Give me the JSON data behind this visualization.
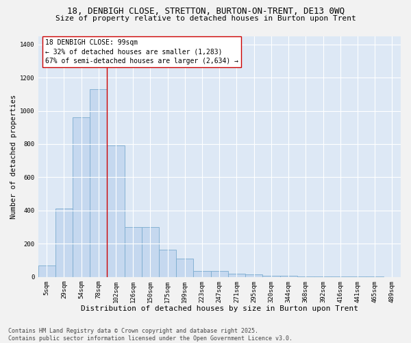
{
  "title": "18, DENBIGH CLOSE, STRETTON, BURTON-ON-TRENT, DE13 0WQ",
  "subtitle": "Size of property relative to detached houses in Burton upon Trent",
  "xlabel": "Distribution of detached houses by size in Burton upon Trent",
  "ylabel": "Number of detached properties",
  "categories": [
    "5sqm",
    "29sqm",
    "54sqm",
    "78sqm",
    "102sqm",
    "126sqm",
    "150sqm",
    "175sqm",
    "199sqm",
    "223sqm",
    "247sqm",
    "271sqm",
    "295sqm",
    "320sqm",
    "344sqm",
    "368sqm",
    "392sqm",
    "416sqm",
    "441sqm",
    "465sqm",
    "489sqm"
  ],
  "values": [
    70,
    410,
    960,
    1130,
    790,
    300,
    300,
    165,
    110,
    35,
    35,
    20,
    15,
    8,
    6,
    4,
    2,
    1,
    1,
    1,
    0
  ],
  "bar_color": "#c5d8ef",
  "bar_edgecolor": "#7aabcf",
  "vline_color": "#cc0000",
  "vline_bar_index": 3,
  "annotation_text": "18 DENBIGH CLOSE: 99sqm\n← 32% of detached houses are smaller (1,283)\n67% of semi-detached houses are larger (2,634) →",
  "annotation_box_facecolor": "#ffffff",
  "annotation_box_edgecolor": "#cc0000",
  "ylim": [
    0,
    1450
  ],
  "yticks": [
    0,
    200,
    400,
    600,
    800,
    1000,
    1200,
    1400
  ],
  "plot_bg_color": "#dde8f5",
  "fig_bg_color": "#f2f2f2",
  "grid_color": "#ffffff",
  "footnote": "Contains HM Land Registry data © Crown copyright and database right 2025.\nContains public sector information licensed under the Open Government Licence v3.0.",
  "title_fontsize": 9,
  "subtitle_fontsize": 8,
  "xlabel_fontsize": 8,
  "ylabel_fontsize": 7.5,
  "tick_fontsize": 6.5,
  "annot_fontsize": 7,
  "footnote_fontsize": 6
}
